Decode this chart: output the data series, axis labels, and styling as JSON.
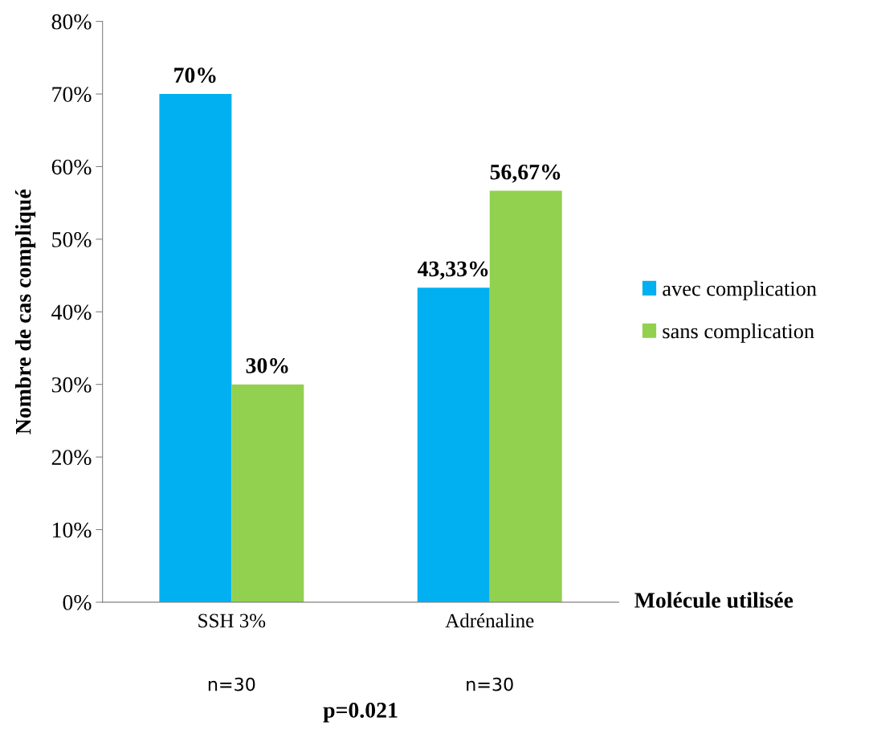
{
  "chart_data": {
    "type": "bar",
    "categories": [
      "SSH 3%",
      "Adrénaline"
    ],
    "series": [
      {
        "name": "avec complication",
        "color": "#00b0f0",
        "values": [
          70,
          43.33
        ],
        "value_labels": [
          "70%",
          "43,33%"
        ]
      },
      {
        "name": "sans complication",
        "color": "#92d050",
        "values": [
          30,
          56.67
        ],
        "value_labels": [
          "30%",
          "56,67%"
        ]
      }
    ],
    "xlabel": "Molécule utilisée",
    "ylabel": "Nombre de cas compliqué",
    "ylim": [
      0,
      80
    ],
    "yticks": [
      {
        "value": 0,
        "label": "0%"
      },
      {
        "value": 10,
        "label": "10%"
      },
      {
        "value": 20,
        "label": "20%"
      },
      {
        "value": 30,
        "label": "30%"
      },
      {
        "value": 40,
        "label": "40%"
      },
      {
        "value": 50,
        "label": "50%"
      },
      {
        "value": 60,
        "label": "60%"
      },
      {
        "value": 70,
        "label": "70%"
      },
      {
        "value": 80,
        "label": "80%"
      }
    ],
    "annotations": [
      "n=30",
      "n=30",
      "p=0.021"
    ],
    "legend": "right",
    "grid": false
  }
}
